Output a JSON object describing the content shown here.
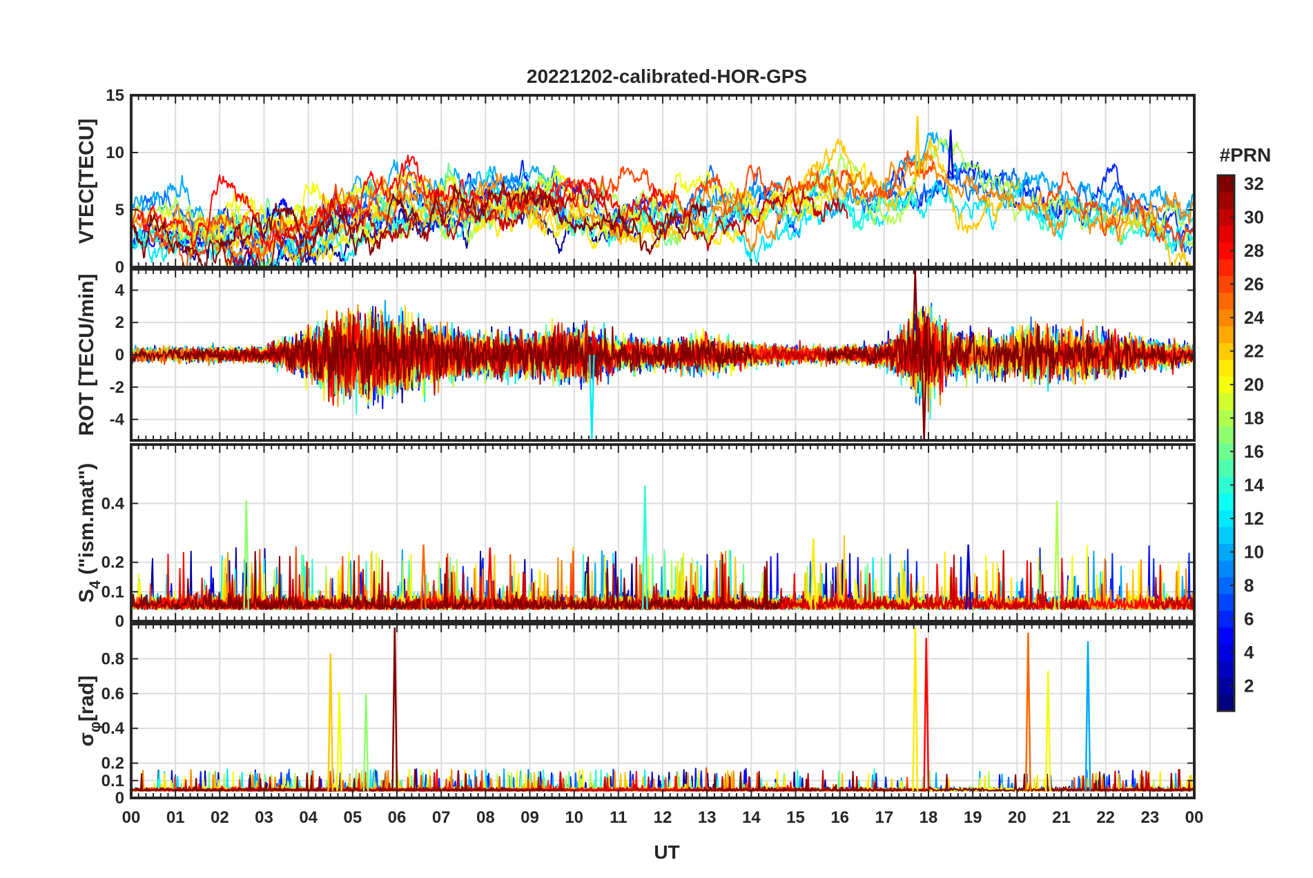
{
  "chart_data": {
    "type": "line",
    "title": "20221202-calibrated-HOR-GPS",
    "xlabel": "UT",
    "x_range_hours": [
      0,
      24
    ],
    "x_tick_labels": [
      "00",
      "01",
      "02",
      "03",
      "04",
      "05",
      "06",
      "07",
      "08",
      "09",
      "10",
      "11",
      "12",
      "13",
      "14",
      "15",
      "16",
      "17",
      "18",
      "19",
      "20",
      "21",
      "22",
      "23",
      "00"
    ],
    "grid": true,
    "colorbar": {
      "label": "#PRN",
      "range": [
        1,
        32
      ],
      "ticks": [
        2,
        4,
        6,
        8,
        10,
        12,
        14,
        16,
        18,
        20,
        22,
        24,
        26,
        28,
        30,
        32
      ],
      "tick_labels": [
        "2",
        "4",
        "6",
        "8",
        "10",
        "12",
        "14",
        "16",
        "18",
        "20",
        "22",
        "24",
        "26",
        "28",
        "30",
        "32"
      ],
      "colormap": "jet",
      "placement": "right"
    },
    "panels": [
      {
        "id": "vtec",
        "ylabel": "VTEC[TECU]",
        "ylim": [
          0,
          15
        ],
        "y_ticks": [
          0,
          5,
          10,
          15
        ],
        "y_tick_labels": [
          "0",
          "5",
          "10",
          "15"
        ],
        "envelope_points": [
          [
            0,
            3.5
          ],
          [
            2,
            3
          ],
          [
            3,
            2.7
          ],
          [
            4,
            3.3
          ],
          [
            5,
            4.5
          ],
          [
            6,
            5.5
          ],
          [
            7,
            5
          ],
          [
            8,
            5.5
          ],
          [
            9,
            6
          ],
          [
            10,
            5.5
          ],
          [
            11,
            4.8
          ],
          [
            12,
            4
          ],
          [
            13,
            4.3
          ],
          [
            14,
            5
          ],
          [
            15,
            5.8
          ],
          [
            16,
            6.5
          ],
          [
            17,
            5.5
          ],
          [
            17.5,
            7
          ],
          [
            18,
            8.5
          ],
          [
            19,
            7
          ],
          [
            20,
            6
          ],
          [
            21,
            5
          ],
          [
            22,
            4.5
          ],
          [
            23,
            4.2
          ],
          [
            24,
            3.3
          ]
        ],
        "peaks": [
          {
            "ut": 17.75,
            "value": 13.2,
            "prn": 22
          },
          {
            "ut": 18.5,
            "value": 12.0,
            "prn": 3
          }
        ]
      },
      {
        "id": "rot",
        "ylabel": "ROT [TECU/min]",
        "ylim": [
          -5.3,
          5.3
        ],
        "y_ticks": [
          -4,
          -2,
          0,
          2,
          4
        ],
        "y_tick_labels": [
          "-4",
          "-2",
          "0",
          "2",
          "4"
        ],
        "activity_points": [
          [
            0,
            0.4
          ],
          [
            3,
            0.4
          ],
          [
            3.7,
            0.9
          ],
          [
            4.5,
            2
          ],
          [
            5.5,
            2.3
          ],
          [
            6.5,
            1.6
          ],
          [
            7.5,
            1.1
          ],
          [
            9,
            1.1
          ],
          [
            10,
            1.5
          ],
          [
            11,
            0.9
          ],
          [
            12,
            0.8
          ],
          [
            13,
            1
          ],
          [
            14,
            0.6
          ],
          [
            15,
            0.45
          ],
          [
            16,
            0.4
          ],
          [
            17,
            0.6
          ],
          [
            17.5,
            1.5
          ],
          [
            18,
            2.6
          ],
          [
            18.5,
            1.2
          ],
          [
            19,
            1
          ],
          [
            20.5,
            1.4
          ],
          [
            22,
            1.1
          ],
          [
            24,
            0.5
          ]
        ],
        "peaks": [
          {
            "ut": 17.7,
            "value": 5.3,
            "prn": 32
          },
          {
            "ut": 17.9,
            "value": -5.3,
            "prn": 32
          },
          {
            "ut": 10.4,
            "value": -5.2,
            "prn": 12
          }
        ]
      },
      {
        "id": "s4",
        "ylabel": "S4 (\"ism.mat\")",
        "ylabel_parts": {
          "base": "S",
          "subscript": "4",
          "rest": " (\"ism.mat\")"
        },
        "ylim": [
          0,
          0.6
        ],
        "y_ticks": [
          0,
          0.1,
          0.2,
          0.4
        ],
        "y_tick_labels": [
          "0",
          "0.1",
          "0.2",
          "0.4"
        ],
        "baseline": 0.04,
        "peaks": [
          {
            "ut": 2.6,
            "value": 0.41,
            "prn": 17
          },
          {
            "ut": 11.6,
            "value": 0.46,
            "prn": 14
          },
          {
            "ut": 20.9,
            "value": 0.41,
            "prn": 18
          },
          {
            "ut": 6.6,
            "value": 0.26,
            "prn": 25
          },
          {
            "ut": 8.1,
            "value": 0.25,
            "prn": 28
          },
          {
            "ut": 15.4,
            "value": 0.28,
            "prn": 21
          },
          {
            "ut": 18.9,
            "value": 0.26,
            "prn": 3
          }
        ]
      },
      {
        "id": "sigphi",
        "ylabel": "σφ [rad]",
        "ylabel_parts": {
          "base": "σ",
          "subscript": "φ",
          "rest": "[rad]"
        },
        "ylim": [
          0,
          1
        ],
        "y_ticks": [
          0,
          0.1,
          0.2,
          0.4,
          0.6,
          0.8
        ],
        "y_tick_labels": [
          "0",
          "0.1",
          "0.2",
          "0.4",
          "0.6",
          "0.8"
        ],
        "baseline": 0.04,
        "peaks": [
          {
            "ut": 4.5,
            "value": 0.83,
            "prn": 22
          },
          {
            "ut": 4.7,
            "value": 0.61,
            "prn": 20
          },
          {
            "ut": 5.3,
            "value": 0.6,
            "prn": 17
          },
          {
            "ut": 5.95,
            "value": 0.98,
            "prn": 32
          },
          {
            "ut": 17.7,
            "value": 0.98,
            "prn": 21
          },
          {
            "ut": 17.95,
            "value": 0.92,
            "prn": 28
          },
          {
            "ut": 20.25,
            "value": 0.95,
            "prn": 25
          },
          {
            "ut": 20.7,
            "value": 0.73,
            "prn": 20
          },
          {
            "ut": 21.6,
            "value": 0.9,
            "prn": 10
          }
        ]
      }
    ]
  }
}
